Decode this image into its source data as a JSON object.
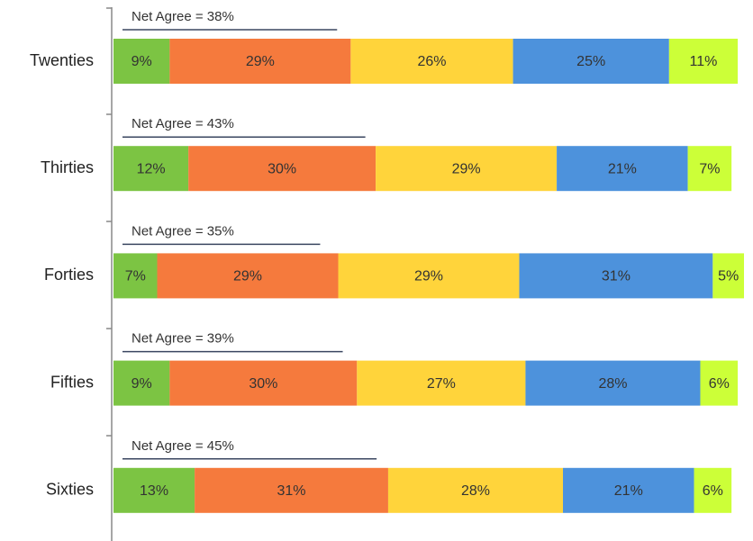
{
  "chart_data": {
    "type": "stacked-bar-horizontal",
    "categories": [
      "Twenties",
      "Thirties",
      "Forties",
      "Fifties",
      "Sixties"
    ],
    "series": [
      {
        "color": "#7cc443",
        "values": [
          9,
          12,
          7,
          9,
          13
        ],
        "value_labels": [
          "9%",
          "12%",
          "7%",
          "9%",
          "13%"
        ]
      },
      {
        "color": "#f57a3d",
        "values": [
          29,
          30,
          29,
          30,
          31
        ],
        "value_labels": [
          "29%",
          "30%",
          "29%",
          "30%",
          "31%"
        ]
      },
      {
        "color": "#ffd43b",
        "values": [
          26,
          29,
          29,
          27,
          28
        ],
        "value_labels": [
          "26%",
          "29%",
          "29%",
          "27%",
          "28%"
        ]
      },
      {
        "color": "#4d92dc",
        "values": [
          25,
          21,
          31,
          28,
          21
        ],
        "value_labels": [
          "25%",
          "21%",
          "31%",
          "28%",
          "21%"
        ]
      },
      {
        "color": "#ccff38",
        "values": [
          11,
          7,
          5,
          6,
          6
        ],
        "value_labels": [
          "11%",
          "7%",
          "5%",
          "6%",
          "6%"
        ]
      }
    ],
    "net_agree": [
      {
        "value": 38,
        "label": "Net Agree = 38%"
      },
      {
        "value": 43,
        "label": "Net Agree = 43%"
      },
      {
        "value": 35,
        "label": "Net Agree = 35%"
      },
      {
        "value": 39,
        "label": "Net Agree = 39%"
      },
      {
        "value": 45,
        "label": "Net Agree = 45%"
      }
    ],
    "xlim": [
      0,
      101
    ]
  }
}
